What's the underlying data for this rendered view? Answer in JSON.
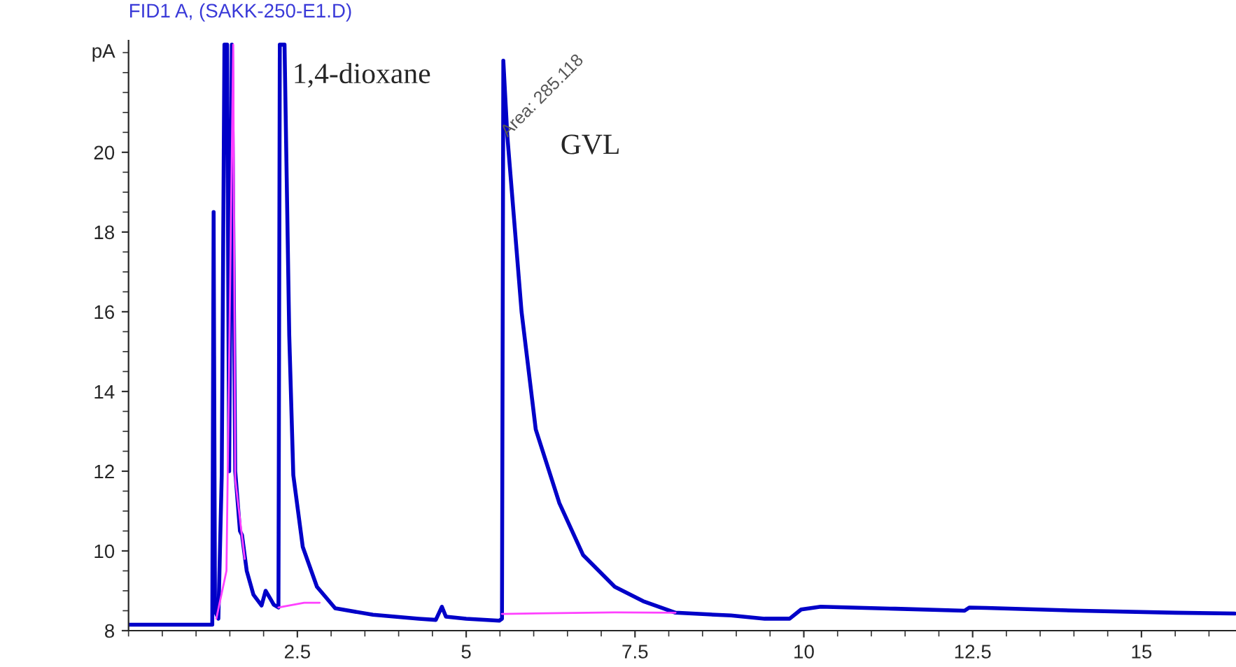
{
  "chart_data": {
    "type": "line",
    "title": "FID1 A, (SAKK-250-E1.D)",
    "ylabel": "pA",
    "xlim": [
      0,
      16.4
    ],
    "ylim": [
      8,
      22.8
    ],
    "xticks": [
      2.5,
      5,
      7.5,
      10,
      12.5,
      15
    ],
    "yticks": [
      8,
      10,
      12,
      14,
      16,
      18,
      20
    ],
    "grid": false,
    "legend": false,
    "marker": "none",
    "line_style": "solid",
    "series": [
      {
        "color": "#0000c8",
        "x": [
          0,
          1.24,
          1.26,
          1.28,
          1.33,
          1.38,
          1.42,
          1.46,
          1.49,
          1.53,
          1.58,
          1.65,
          1.68,
          1.75,
          1.85,
          1.97,
          2.03,
          2.1,
          2.15,
          2.22,
          2.24,
          2.31,
          2.38,
          2.44,
          2.58,
          2.79,
          3.06,
          3.62,
          4.3,
          4.55,
          4.64,
          4.7,
          5.0,
          5.49,
          5.53,
          5.55,
          5.61,
          5.82,
          6.03,
          6.38,
          6.73,
          7.2,
          7.62,
          8.1,
          8.92,
          9.42,
          9.79,
          9.96,
          10.25,
          11.35,
          12.38,
          12.45,
          12.7,
          14.1,
          15.5,
          16.38
        ],
        "values": [
          8.15,
          8.15,
          18.5,
          8.5,
          8.3,
          11.9,
          22.7,
          22.7,
          12,
          22.7,
          12,
          10.5,
          10.4,
          9.5,
          8.9,
          8.63,
          9.0,
          8.8,
          8.65,
          8.58,
          22.7,
          22.7,
          15.4,
          11.9,
          10.1,
          9.1,
          8.56,
          8.4,
          8.3,
          8.27,
          8.6,
          8.35,
          8.3,
          8.25,
          8.3,
          22.3,
          20.4,
          16,
          13.05,
          11.2,
          9.9,
          9.1,
          8.74,
          8.45,
          8.38,
          8.3,
          8.3,
          8.53,
          8.6,
          8.55,
          8.5,
          8.58,
          8.57,
          8.5,
          8.45,
          8.43
        ]
      },
      {
        "color": "#ff40ff",
        "x": [
          1.3,
          1.45,
          1.55,
          1.58,
          1.72
        ],
        "values": [
          8.3,
          9.5,
          22.7,
          11.8,
          9.8
        ]
      },
      {
        "color": "#ff40ff",
        "x": [
          2.22,
          2.6,
          2.83
        ],
        "values": [
          8.58,
          8.7,
          8.7
        ]
      },
      {
        "color": "#ff40ff",
        "x": [
          5.53,
          7.2,
          8.1
        ],
        "values": [
          8.42,
          8.46,
          8.45
        ]
      }
    ],
    "annotations": [
      "1,4-dioxane",
      "GVL",
      {
        "text": "Area: 285.118",
        "x": 5.65,
        "y": 20.3
      }
    ]
  }
}
